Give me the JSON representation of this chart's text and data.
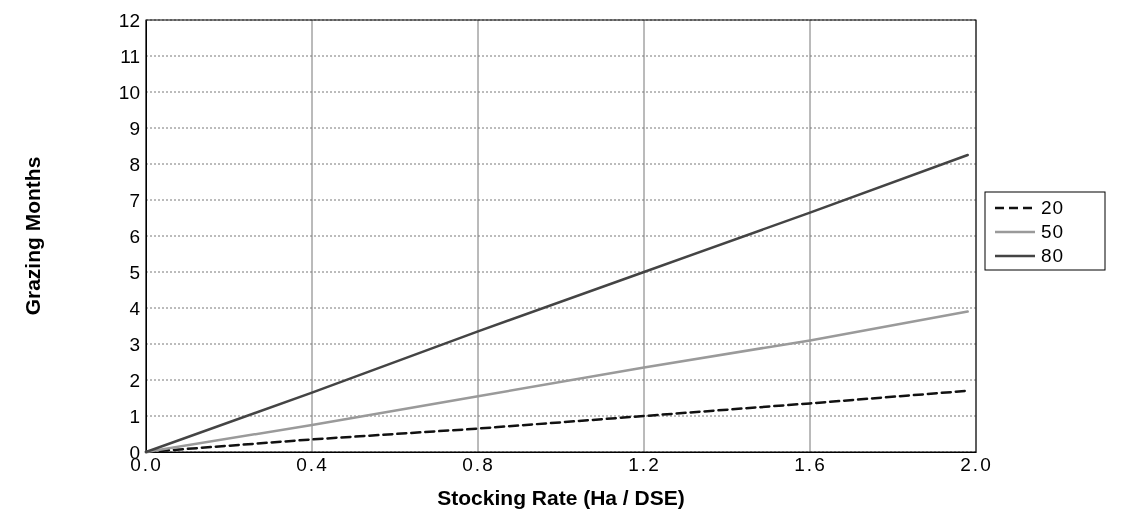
{
  "chart_data": {
    "type": "line",
    "xlabel": "Stocking Rate (Ha / DSE)",
    "ylabel": "Grazing Months",
    "x": [
      0,
      0.4,
      0.8,
      1.2,
      1.6,
      1.98
    ],
    "series": [
      {
        "name": "20",
        "color": "#111111",
        "line_style": "dashed",
        "values": [
          0,
          0.35,
          0.65,
          1.0,
          1.35,
          1.7
        ]
      },
      {
        "name": "50",
        "color": "#9a9a9a",
        "line_style": "solid",
        "values": [
          0,
          0.75,
          1.55,
          2.35,
          3.1,
          3.9
        ]
      },
      {
        "name": "80",
        "color": "#444444",
        "line_style": "solid",
        "values": [
          0,
          1.65,
          3.35,
          5.0,
          6.65,
          8.25
        ]
      }
    ],
    "xlim": [
      0,
      2
    ],
    "xticks": [
      {
        "value": 0,
        "label": "0.0"
      },
      {
        "value": 0.4,
        "label": "0.4"
      },
      {
        "value": 0.8,
        "label": "0.8"
      },
      {
        "value": 1.2,
        "label": "1.2"
      },
      {
        "value": 1.6,
        "label": "1.6"
      },
      {
        "value": 2,
        "label": "2.0"
      }
    ],
    "ylim": [
      0,
      12
    ],
    "yticks": [
      0,
      1,
      2,
      3,
      4,
      5,
      6,
      7,
      8,
      9,
      10,
      11,
      12
    ],
    "grid": true,
    "legend": "right",
    "marker": "none"
  }
}
